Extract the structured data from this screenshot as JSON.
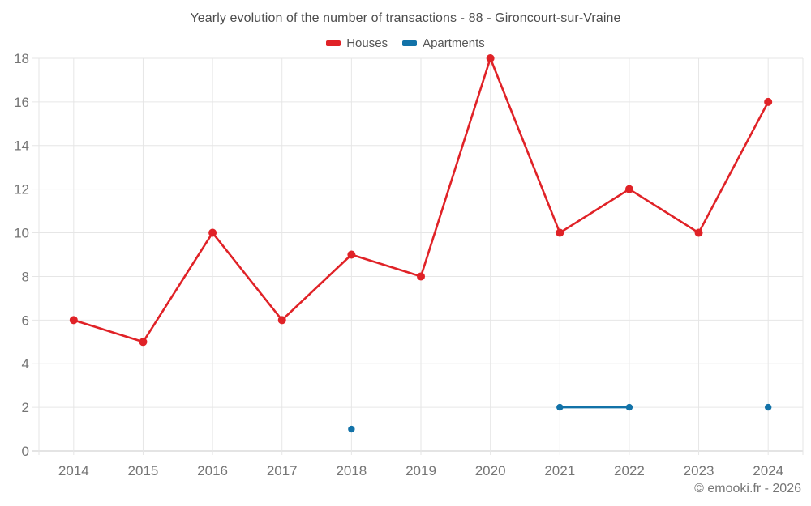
{
  "footer": "© emooki.fr - 2026",
  "colors": {
    "houses": "#e02227",
    "apartments": "#1272a8",
    "grid": "#e6e6e6",
    "axis_line": "#c9c9c9",
    "axis_text": "#757575",
    "title_text": "#4c4c4c"
  },
  "chart_data": {
    "type": "line",
    "title": "Yearly evolution of the number of transactions - 88 - Gironcourt-sur-Vraine",
    "categories": [
      "2014",
      "2015",
      "2016",
      "2017",
      "2018",
      "2019",
      "2020",
      "2021",
      "2022",
      "2023",
      "2024"
    ],
    "series": [
      {
        "name": "Houses",
        "color": "#e02227",
        "values": [
          6,
          5,
          10,
          6,
          9,
          8,
          18,
          10,
          12,
          10,
          16
        ]
      },
      {
        "name": "Apartments",
        "color": "#1272a8",
        "values": [
          null,
          null,
          null,
          null,
          1,
          null,
          null,
          2,
          2,
          null,
          2
        ]
      }
    ],
    "xlabel": "",
    "ylabel": "",
    "ylim": [
      0,
      18
    ],
    "yticks": [
      0,
      2,
      4,
      6,
      8,
      10,
      12,
      14,
      16,
      18
    ],
    "grid": true,
    "legend_position": "top"
  }
}
